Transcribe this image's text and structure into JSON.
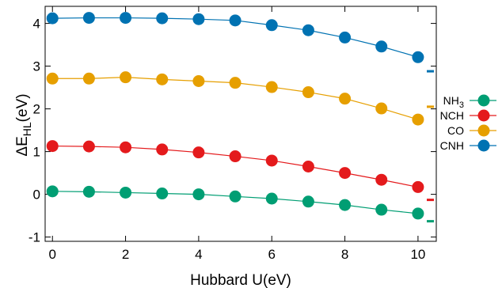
{
  "chart_data": {
    "type": "line",
    "title": "",
    "xlabel": "Hubbard U(eV)",
    "ylabel": {
      "main": "ΔE",
      "sub": "HL",
      "suffix": "(eV)"
    },
    "xlim": [
      -0.2,
      10.5
    ],
    "ylim": [
      -1.1,
      4.4
    ],
    "xticks": [
      "0",
      "2",
      "4",
      "6",
      "8",
      "10"
    ],
    "yticks": [
      "-1",
      "0",
      "1",
      "2",
      "3",
      "4"
    ],
    "grid": false,
    "legend_position": "right",
    "x": [
      0,
      1,
      2,
      3,
      4,
      5,
      6,
      7,
      8,
      9,
      10
    ],
    "series": [
      {
        "name": "NH3",
        "label_main": "NH",
        "label_sub": "3",
        "color": "#009e73",
        "values": [
          0.07,
          0.06,
          0.04,
          0.02,
          0.0,
          -0.05,
          -0.1,
          -0.17,
          -0.25,
          -0.36,
          -0.45
        ],
        "reference": -0.63
      },
      {
        "name": "NCH",
        "label_main": "NCH",
        "label_sub": "",
        "color": "#e41a1c",
        "values": [
          1.13,
          1.12,
          1.1,
          1.05,
          0.98,
          0.89,
          0.79,
          0.65,
          0.5,
          0.34,
          0.17
        ],
        "reference": -0.13
      },
      {
        "name": "CO",
        "label_main": "CO",
        "label_sub": "",
        "color": "#e69f00",
        "values": [
          2.71,
          2.71,
          2.74,
          2.69,
          2.65,
          2.61,
          2.51,
          2.39,
          2.24,
          2.01,
          1.75
        ],
        "reference": 2.05
      },
      {
        "name": "CNH",
        "label_main": "CNH",
        "label_sub": "",
        "color": "#0072b2",
        "values": [
          4.12,
          4.13,
          4.13,
          4.12,
          4.1,
          4.07,
          3.96,
          3.84,
          3.67,
          3.46,
          3.21
        ],
        "reference": 2.88
      }
    ]
  }
}
